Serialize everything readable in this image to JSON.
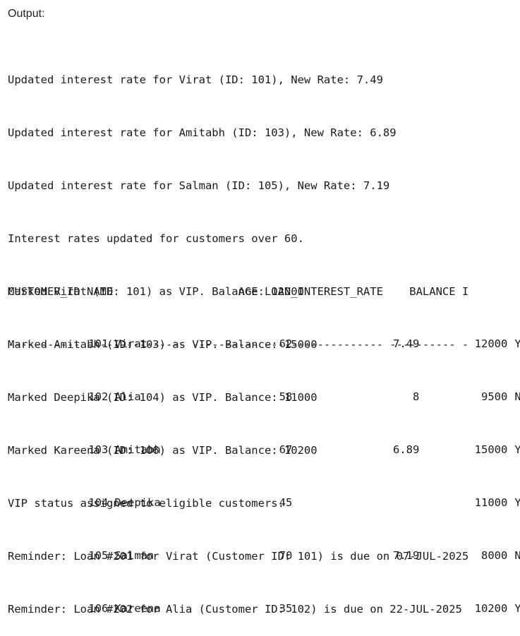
{
  "header": {
    "title": "Output:"
  },
  "console": {
    "lines": [
      "Updated interest rate for Virat (ID: 101), New Rate: 7.49",
      "Updated interest rate for Amitabh (ID: 103), New Rate: 6.89",
      "Updated interest rate for Salman (ID: 105), New Rate: 7.19",
      "Interest rates updated for customers over 60.",
      "Marked Virat (ID: 101) as VIP. Balance: 12000",
      "Marked Amitabh (ID: 103) as VIP. Balance: 15000",
      "Marked Deepika (ID: 104) as VIP. Balance: 11000",
      "Marked Kareena (ID: 106) as VIP. Balance: 10200",
      "VIP status assigned to eligible customers.",
      "Reminder: Loan #201 for Virat (Customer ID: 101) is due on 07-JUL-2025",
      "Reminder: Loan #202 for Alia (Customer ID: 102) is due on 22-JUL-2025"
    ]
  },
  "table": {
    "header_line": "CUSTOMER_ID NAME                   AGE LOAN_INTEREST_RATE    BALANCE I",
    "separator_line": "----------- --------------- ---------- ------------------ ---------- -",
    "rows": [
      {
        "id": "101",
        "name": "Virat",
        "age": "62",
        "rate": "7.49",
        "balance": "12000",
        "vip": "Y"
      },
      {
        "id": "102",
        "name": "Alia",
        "age": "58",
        "rate": "8",
        "balance": "9500",
        "vip": "N"
      },
      {
        "id": "103",
        "name": "Amitabh",
        "age": "67",
        "rate": "6.89",
        "balance": "15000",
        "vip": "Y"
      },
      {
        "id": "104",
        "name": "Deepika",
        "age": "45",
        "rate": "",
        "balance": "11000",
        "vip": "Y"
      },
      {
        "id": "105",
        "name": "Salman",
        "age": "70",
        "rate": "7.19",
        "balance": "8000",
        "vip": "N"
      },
      {
        "id": "106",
        "name": "Kareena",
        "age": "35",
        "rate": "",
        "balance": "10200",
        "vip": "Y"
      }
    ]
  }
}
